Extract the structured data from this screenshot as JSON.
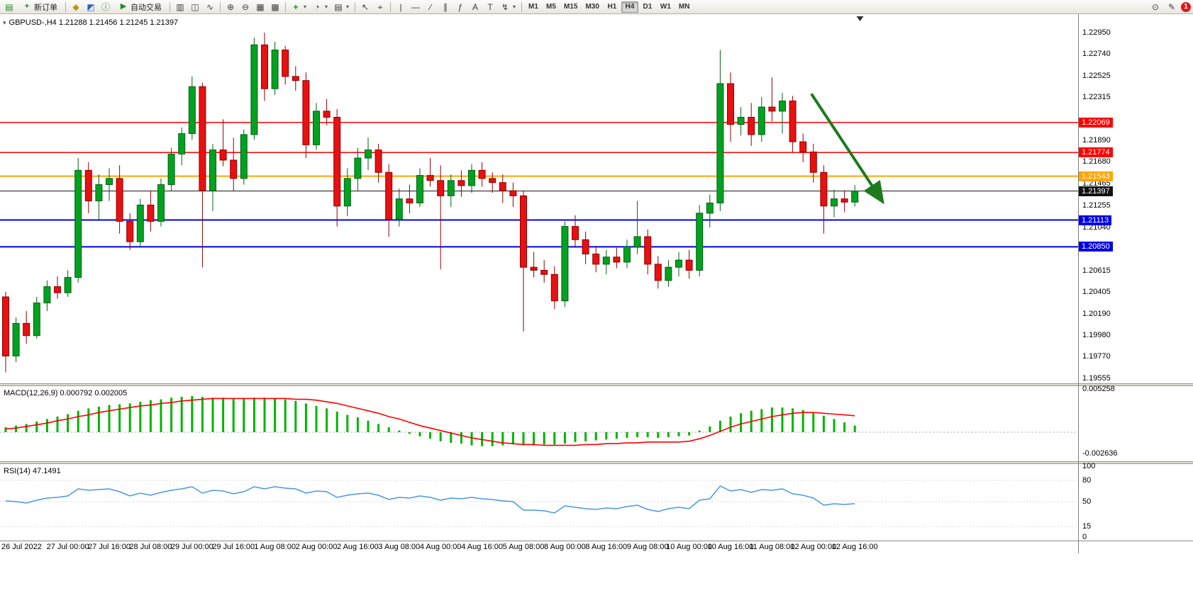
{
  "toolbar": {
    "new_order_label": "新订单",
    "autotrading_label": "自动交易",
    "timeframes": [
      "M1",
      "M5",
      "M15",
      "M30",
      "H1",
      "H4",
      "D1",
      "W1",
      "MN"
    ],
    "active_timeframe": "H4",
    "notification_count": "1"
  },
  "icons": {
    "app": "▤",
    "new_order": "+",
    "profiles": "◆",
    "market_watch": "◩",
    "data_window": "ⓘ",
    "autotrading": "▶",
    "bar_chart": "▥",
    "candle_chart": "◫",
    "line_chart": "∿",
    "zoom_in": "⊕",
    "zoom_out": "⊖",
    "tile_windows": "▦",
    "cascade": "▩",
    "new_chart": "+",
    "period": "◔",
    "template": "▤",
    "cursor": "↖",
    "crosshair": "⌖",
    "vline": "|",
    "hline": "—",
    "trendline": "∕",
    "channel": "∥",
    "fibo": "ƒ",
    "text": "A",
    "label": "T",
    "shapes": "↯",
    "dropdown": "▾",
    "search": "⊙",
    "edit": "✎",
    "one_click": "▾"
  },
  "colors": {
    "up": "#00A21F",
    "up_border": "#006014",
    "down": "#E81010",
    "down_border": "#8F0000",
    "macd_histogram": "#00B400",
    "macd_signal": "#FF0000",
    "rsi_line": "#4A97DF",
    "arrow": "#1E7A1E"
  },
  "chart": {
    "symbol_label": "GBPUSD-,H4",
    "quote": "1.21288 1.21456 1.21245 1.21397",
    "price_axis_labels": [
      "1.22950",
      "1.22740",
      "1.22525",
      "1.22315",
      "1.21890",
      "1.21680",
      "1.21465",
      "1.21255",
      "1.21040",
      "1.20615",
      "1.20405",
      "1.20190",
      "1.19980",
      "1.19770",
      "1.19555"
    ]
  },
  "macd": {
    "label": "MACD(12,26,9) 0.000792 0.002005",
    "axis_labels": [
      {
        "label": "0.005258",
        "value": 0.005258
      },
      {
        "label": "-0.002636",
        "value": -0.002636
      }
    ]
  },
  "rsi": {
    "label": "RSI(14) 47.1491",
    "axis_labels": [
      {
        "label": "100",
        "value": 100
      },
      {
        "label": "80",
        "value": 80
      },
      {
        "label": "50",
        "value": 50
      },
      {
        "label": "15",
        "value": 15
      },
      {
        "label": "0",
        "value": 0
      }
    ]
  },
  "chart_data": {
    "type": "candlestick",
    "symbol": "GBPUSD",
    "timeframe": "H4",
    "ylim": [
      1.19555,
      1.2295
    ],
    "candles": [
      [
        1.2036,
        1.2041,
        1.1962,
        1.1978
      ],
      [
        1.1978,
        1.2016,
        1.1972,
        1.201
      ],
      [
        1.201,
        1.2022,
        1.199,
        1.1998
      ],
      [
        1.1998,
        1.2036,
        1.1995,
        1.203
      ],
      [
        1.203,
        1.2052,
        1.2022,
        1.2046
      ],
      [
        1.2046,
        1.2056,
        1.2034,
        1.204
      ],
      [
        1.204,
        1.2062,
        1.2036,
        1.2055
      ],
      [
        1.2055,
        1.2172,
        1.205,
        1.216
      ],
      [
        1.216,
        1.2168,
        1.2118,
        1.213
      ],
      [
        1.213,
        1.2156,
        1.2112,
        1.2146
      ],
      [
        1.2146,
        1.2162,
        1.213,
        1.2152
      ],
      [
        1.2152,
        1.2165,
        1.2098,
        1.211
      ],
      [
        1.211,
        1.2118,
        1.2082,
        1.209
      ],
      [
        1.209,
        1.2132,
        1.2085,
        1.2126
      ],
      [
        1.2126,
        1.214,
        1.21,
        1.211
      ],
      [
        1.211,
        1.2152,
        1.2105,
        1.2146
      ],
      [
        1.2146,
        1.2182,
        1.214,
        1.2176
      ],
      [
        1.2176,
        1.2202,
        1.2165,
        1.2196
      ],
      [
        1.2196,
        1.2252,
        1.219,
        1.2242
      ],
      [
        1.2242,
        1.2246,
        1.2065,
        1.214
      ],
      [
        1.214,
        1.2186,
        1.212,
        1.218
      ],
      [
        1.218,
        1.221,
        1.2164,
        1.217
      ],
      [
        1.217,
        1.2192,
        1.214,
        1.2152
      ],
      [
        1.2152,
        1.22,
        1.2146,
        1.2195
      ],
      [
        1.2195,
        1.229,
        1.219,
        1.2283
      ],
      [
        1.2283,
        1.2295,
        1.2228,
        1.224
      ],
      [
        1.224,
        1.2286,
        1.2234,
        1.2278
      ],
      [
        1.2278,
        1.2282,
        1.2244,
        1.2252
      ],
      [
        1.2252,
        1.2262,
        1.2238,
        1.2248
      ],
      [
        1.2248,
        1.2256,
        1.2172,
        1.2185
      ],
      [
        1.2185,
        1.2226,
        1.218,
        1.2218
      ],
      [
        1.2218,
        1.223,
        1.2204,
        1.2212
      ],
      [
        1.2212,
        1.222,
        1.2105,
        1.2125
      ],
      [
        1.2125,
        1.2162,
        1.2115,
        1.2152
      ],
      [
        1.2152,
        1.2182,
        1.214,
        1.2172
      ],
      [
        1.2172,
        1.2192,
        1.216,
        1.218
      ],
      [
        1.218,
        1.2186,
        1.2148,
        1.2158
      ],
      [
        1.2158,
        1.2166,
        1.2095,
        1.2112
      ],
      [
        1.2112,
        1.2142,
        1.2105,
        1.2132
      ],
      [
        1.2132,
        1.2146,
        1.2118,
        1.2128
      ],
      [
        1.2128,
        1.2162,
        1.2124,
        1.2155
      ],
      [
        1.2155,
        1.2172,
        1.2144,
        1.215
      ],
      [
        1.215,
        1.2165,
        1.2063,
        1.2135
      ],
      [
        1.2135,
        1.2156,
        1.2124,
        1.215
      ],
      [
        1.215,
        1.216,
        1.2134,
        1.2145
      ],
      [
        1.2145,
        1.2166,
        1.2138,
        1.216
      ],
      [
        1.216,
        1.2168,
        1.2144,
        1.2152
      ],
      [
        1.2152,
        1.2158,
        1.2138,
        1.2148
      ],
      [
        1.2148,
        1.2156,
        1.2128,
        1.214
      ],
      [
        1.214,
        1.2148,
        1.2124,
        1.2135
      ],
      [
        1.2135,
        1.214,
        1.2002,
        1.2065
      ],
      [
        1.2065,
        1.208,
        1.2055,
        1.2062
      ],
      [
        1.2062,
        1.2072,
        1.205,
        1.2058
      ],
      [
        1.2058,
        1.2066,
        1.2024,
        1.2032
      ],
      [
        1.2032,
        1.211,
        1.2026,
        1.2105
      ],
      [
        1.2105,
        1.2116,
        1.2084,
        1.2092
      ],
      [
        1.2092,
        1.21,
        1.2068,
        1.2078
      ],
      [
        1.2078,
        1.2086,
        1.206,
        1.2068
      ],
      [
        1.2068,
        1.2082,
        1.2058,
        1.2075
      ],
      [
        1.2075,
        1.2084,
        1.2064,
        1.207
      ],
      [
        1.207,
        1.2092,
        1.2064,
        1.2085
      ],
      [
        1.2085,
        1.213,
        1.2078,
        1.2095
      ],
      [
        1.2095,
        1.2102,
        1.2058,
        1.2068
      ],
      [
        1.2068,
        1.2076,
        1.2044,
        1.2052
      ],
      [
        1.2052,
        1.2072,
        1.2046,
        1.2065
      ],
      [
        1.2065,
        1.208,
        1.2056,
        1.2072
      ],
      [
        1.2072,
        1.2082,
        1.2054,
        1.2062
      ],
      [
        1.2062,
        1.2126,
        1.2056,
        1.2118
      ],
      [
        1.2118,
        1.2136,
        1.2104,
        1.2128
      ],
      [
        1.2128,
        1.2278,
        1.212,
        1.2245
      ],
      [
        1.2245,
        1.2256,
        1.2188,
        1.2205
      ],
      [
        1.2205,
        1.2222,
        1.2194,
        1.2212
      ],
      [
        1.2212,
        1.2226,
        1.2184,
        1.2195
      ],
      [
        1.2195,
        1.2232,
        1.2188,
        1.2222
      ],
      [
        1.2222,
        1.2251,
        1.2208,
        1.2218
      ],
      [
        1.2218,
        1.2236,
        1.2196,
        1.2228
      ],
      [
        1.2228,
        1.2233,
        1.2178,
        1.2188
      ],
      [
        1.2188,
        1.2196,
        1.2168,
        1.2178
      ],
      [
        1.2178,
        1.2186,
        1.2148,
        1.2158
      ],
      [
        1.2158,
        1.2165,
        1.2098,
        1.2125
      ],
      [
        1.2125,
        1.2141,
        1.2114,
        1.2132
      ],
      [
        1.2132,
        1.214,
        1.2119,
        1.21288
      ],
      [
        1.21288,
        1.21456,
        1.21245,
        1.21397
      ]
    ],
    "time_labels": [
      {
        "index": 0,
        "label": "26 Jul 2022"
      },
      {
        "index": 6,
        "label": "27 Jul 00:00"
      },
      {
        "index": 10,
        "label": "27 Jul 16:00"
      },
      {
        "index": 14,
        "label": "28 Jul 08:00"
      },
      {
        "index": 18,
        "label": "29 Jul 00:00"
      },
      {
        "index": 22,
        "label": "29 Jul 16:00"
      },
      {
        "index": 26,
        "label": "1 Aug 08:00"
      },
      {
        "index": 30,
        "label": "2 Aug 00:00"
      },
      {
        "index": 34,
        "label": "2 Aug 16:00"
      },
      {
        "index": 38,
        "label": "3 Aug 08:00"
      },
      {
        "index": 42,
        "label": "4 Aug 00:00"
      },
      {
        "index": 46,
        "label": "4 Aug 16:00"
      },
      {
        "index": 50,
        "label": "5 Aug 08:00"
      },
      {
        "index": 54,
        "label": "8 Aug 00:00"
      },
      {
        "index": 58,
        "label": "8 Aug 16:00"
      },
      {
        "index": 62,
        "label": "9 Aug 08:00"
      },
      {
        "index": 66,
        "label": "10 Aug 00:00"
      },
      {
        "index": 70,
        "label": "10 Aug 16:00"
      },
      {
        "index": 74,
        "label": "11 Aug 08:00"
      },
      {
        "index": 78,
        "label": "12 Aug 00:00"
      },
      {
        "index": 82,
        "label": "12 Aug 16:00"
      }
    ],
    "hlines": [
      {
        "name": "resistance-line-1",
        "price": 1.22069,
        "label": "1.22069",
        "color": "#FF0000",
        "width": 1.5
      },
      {
        "name": "resistance-line-2",
        "price": 1.21774,
        "label": "1.21774",
        "color": "#FF0000",
        "width": 1.5
      },
      {
        "name": "pivot-line-orange",
        "price": 1.21543,
        "label": "1.21543",
        "color": "#FFA500",
        "width": 2
      },
      {
        "name": "current-price-line",
        "price": 1.21397,
        "label": "1.21397",
        "color": "#111111",
        "width": 1
      },
      {
        "name": "support-line-1",
        "price": 1.21113,
        "label": "1.21113",
        "color": "#0000E6",
        "width": 2
      },
      {
        "name": "support-line-2",
        "price": 1.2085,
        "label": "1.20850",
        "color": "#0000E6",
        "width": 2
      }
    ],
    "arrow": {
      "from_bar": 77.8,
      "from_price": 1.2235,
      "to_bar": 84.7,
      "to_price": 1.2129,
      "color": "#1E7A1E",
      "width": 4
    },
    "shift_marker_bar": 82.5,
    "macd": {
      "params": "12,26,9",
      "ylim": [
        -0.002636,
        0.005258
      ],
      "histogram": [
        0.0006,
        0.0008,
        0.001,
        0.0013,
        0.0016,
        0.0019,
        0.0022,
        0.0026,
        0.0029,
        0.0031,
        0.0033,
        0.0034,
        0.0035,
        0.0037,
        0.0039,
        0.004,
        0.0042,
        0.0043,
        0.0044,
        0.0043,
        0.0042,
        0.0042,
        0.0041,
        0.0041,
        0.0042,
        0.0042,
        0.0041,
        0.004,
        0.0038,
        0.0035,
        0.0032,
        0.0029,
        0.0025,
        0.0021,
        0.0018,
        0.0014,
        0.001,
        0.0006,
        0.0002,
        -0.0002,
        -0.0005,
        -0.0008,
        -0.0011,
        -0.0013,
        -0.0014,
        -0.0016,
        -0.0017,
        -0.0017,
        -0.0016,
        -0.0015,
        -0.0016,
        -0.0016,
        -0.0015,
        -0.0015,
        -0.0014,
        -0.0012,
        -0.0011,
        -0.001,
        -0.0009,
        -0.0008,
        -0.0007,
        -0.0006,
        -0.0006,
        -0.0007,
        -0.0006,
        -0.0005,
        -0.0004,
        0.0002,
        0.0007,
        0.0014,
        0.0019,
        0.0023,
        0.0026,
        0.0028,
        0.003,
        0.003,
        0.0029,
        0.0027,
        0.0024,
        0.002,
        0.0016,
        0.0012,
        0.0008
      ],
      "signal": [
        0.0004,
        0.0005,
        0.0007,
        0.0009,
        0.0011,
        0.0014,
        0.0016,
        0.0019,
        0.0021,
        0.0024,
        0.0026,
        0.0028,
        0.003,
        0.0032,
        0.0033,
        0.0035,
        0.0036,
        0.0038,
        0.0039,
        0.004,
        0.0041,
        0.0041,
        0.0041,
        0.0041,
        0.0041,
        0.0041,
        0.0041,
        0.0041,
        0.004,
        0.004,
        0.0039,
        0.0037,
        0.0035,
        0.0032,
        0.0029,
        0.0026,
        0.0023,
        0.0019,
        0.0016,
        0.0012,
        0.0008,
        0.0005,
        0.0002,
        -0.0001,
        -0.0004,
        -0.0007,
        -0.0009,
        -0.0011,
        -0.0013,
        -0.0014,
        -0.0015,
        -0.0015,
        -0.0016,
        -0.0016,
        -0.0016,
        -0.0016,
        -0.0015,
        -0.0015,
        -0.0014,
        -0.0014,
        -0.0013,
        -0.0013,
        -0.0012,
        -0.0012,
        -0.0012,
        -0.0012,
        -0.0011,
        -0.0008,
        -0.0004,
        0.0001,
        0.0006,
        0.001,
        0.0013,
        0.0016,
        0.0019,
        0.0021,
        0.0023,
        0.0024,
        0.0024,
        0.0023,
        0.0022,
        0.0021,
        0.002
      ]
    },
    "rsi": {
      "period": 14,
      "ylim": [
        0,
        100
      ],
      "levels_dotted": [
        80,
        50,
        15
      ],
      "values": [
        51,
        50,
        48,
        52,
        55,
        56,
        58,
        68,
        66,
        67,
        68,
        64,
        58,
        62,
        59,
        63,
        66,
        68,
        71,
        62,
        66,
        65,
        61,
        64,
        71,
        68,
        71,
        69,
        68,
        62,
        65,
        64,
        56,
        59,
        61,
        62,
        59,
        53,
        56,
        55,
        58,
        56,
        52,
        55,
        54,
        56,
        54,
        53,
        51,
        50,
        38,
        38,
        37,
        34,
        44,
        42,
        40,
        39,
        41,
        40,
        43,
        45,
        39,
        36,
        40,
        42,
        40,
        52,
        54,
        72,
        65,
        67,
        63,
        67,
        66,
        68,
        61,
        59,
        55,
        45,
        47,
        46,
        47.15
      ]
    }
  }
}
